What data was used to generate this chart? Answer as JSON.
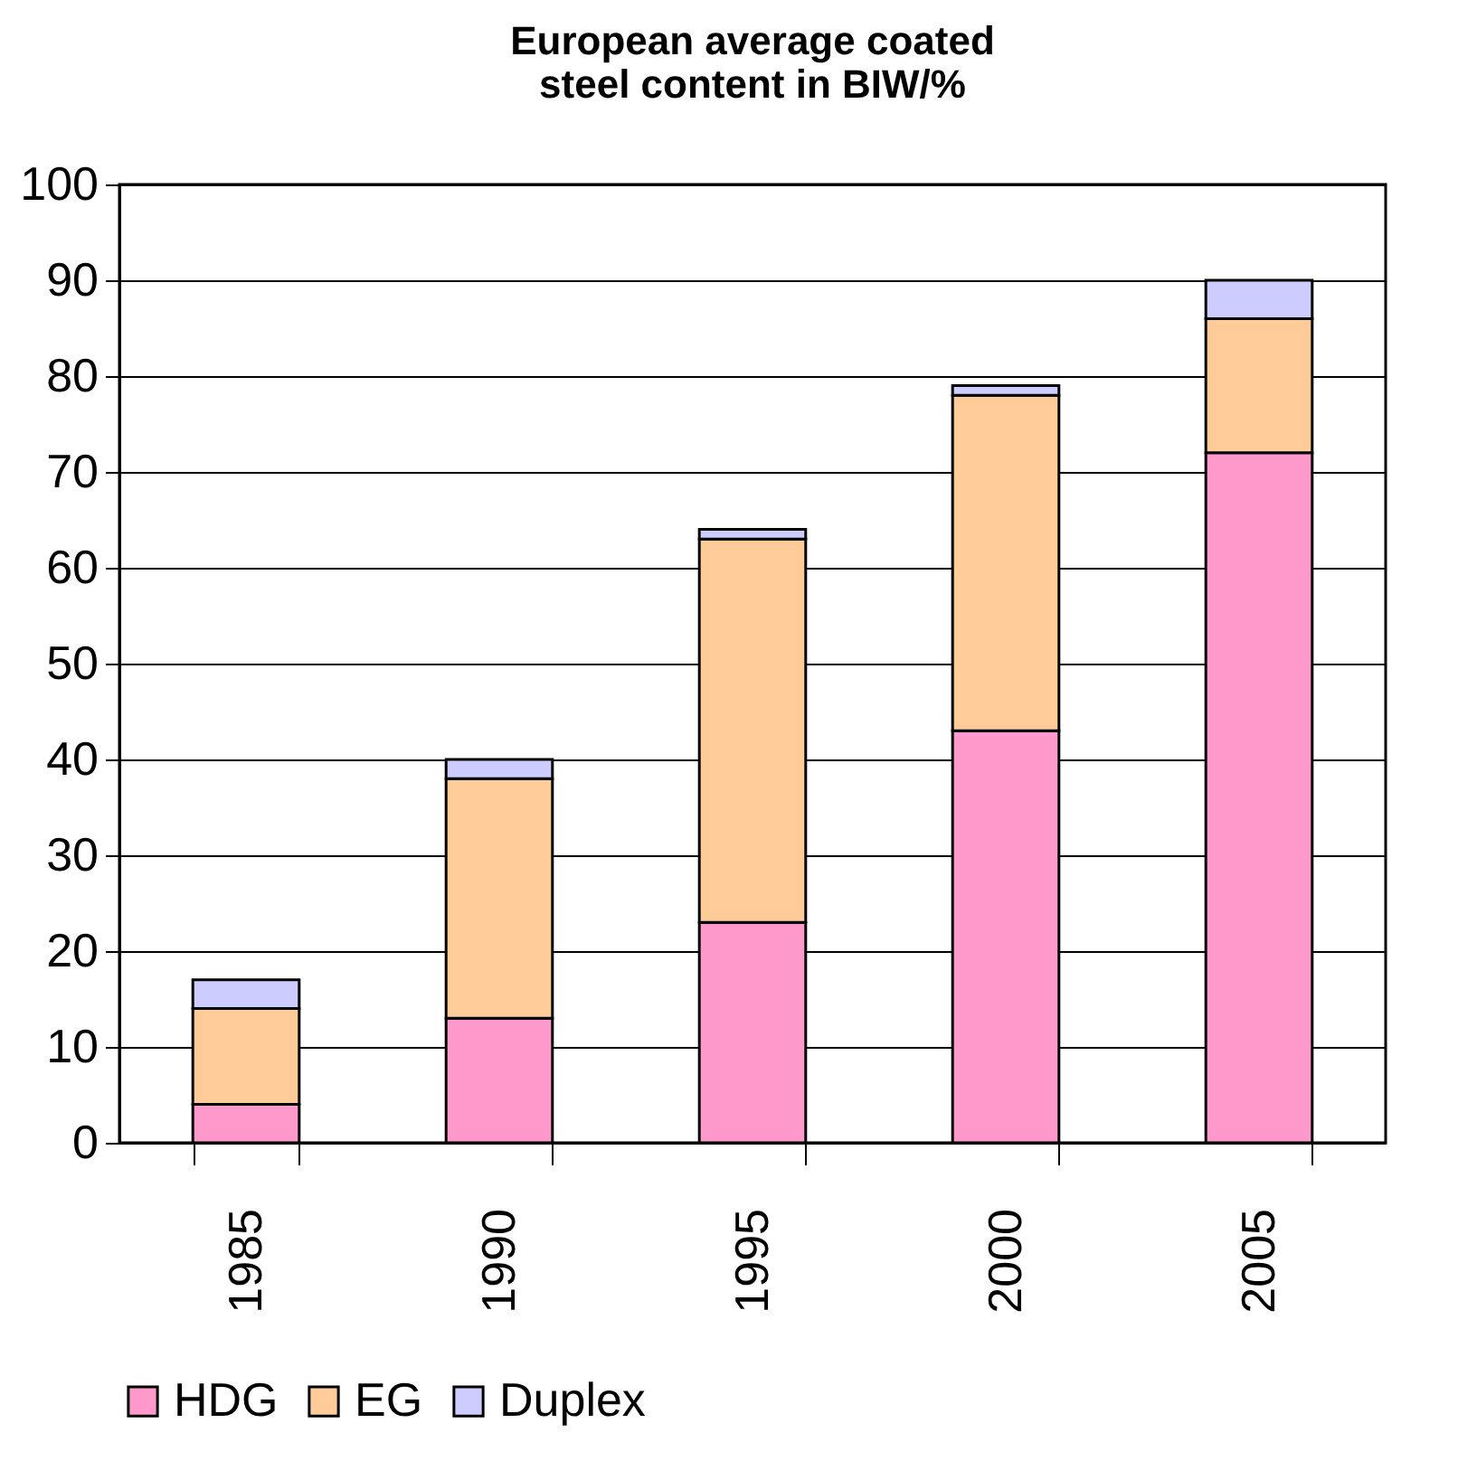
{
  "chart_data": {
    "type": "bar",
    "title": "European average coated steel content in BIW/%",
    "categories": [
      "1985",
      "1990",
      "1995",
      "2000",
      "2005"
    ],
    "series": [
      {
        "name": "HDG",
        "color": "#ff99cc",
        "values": [
          4,
          13,
          23,
          43,
          72
        ]
      },
      {
        "name": "EG",
        "color": "#ffcc99",
        "values": [
          10,
          25,
          40,
          35,
          14
        ]
      },
      {
        "name": "Duplex",
        "color": "#ccccff",
        "values": [
          3,
          2,
          1,
          1,
          4
        ]
      }
    ],
    "stacked": true,
    "ylim": [
      0,
      100
    ],
    "yticks": [
      0,
      10,
      20,
      30,
      40,
      50,
      60,
      70,
      80,
      90,
      100
    ],
    "grid": "y",
    "legend": "bottom"
  }
}
